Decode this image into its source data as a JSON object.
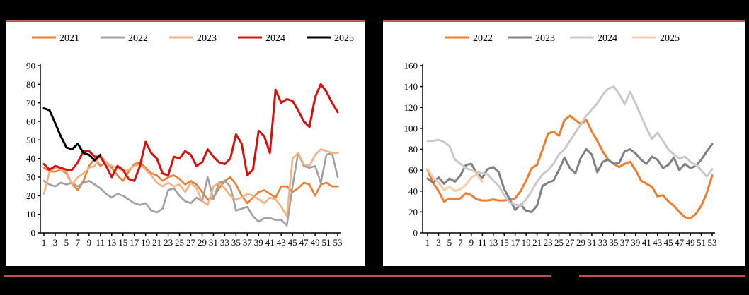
{
  "page": {
    "background": "#000000",
    "card_background": "#FFFFFF",
    "rule_color": "#B85C56",
    "bottom_rule_color": "#C0504D"
  },
  "charts": [
    {
      "id": "left-weekly-chart",
      "chart_data": {
        "type": "line",
        "x": {
          "min": 1,
          "max": 53,
          "tick_step": 2,
          "tick_labels": [
            "1",
            "3",
            "5",
            "7",
            "9",
            "11",
            "13",
            "15",
            "17",
            "19",
            "21",
            "23",
            "25",
            "27",
            "29",
            "31",
            "33",
            "35",
            "37",
            "39",
            "41",
            "43",
            "45",
            "47",
            "49",
            "51",
            "53"
          ]
        },
        "y": {
          "min": 0,
          "max": 90,
          "tick_step": 10,
          "tick_labels": [
            "0",
            "10",
            "20",
            "30",
            "40",
            "50",
            "60",
            "70",
            "80",
            "90"
          ]
        },
        "grid": false,
        "legend_position": "top",
        "series": [
          {
            "name": "2021",
            "color": "#ED7D31",
            "stroke_width": 2.6,
            "start_week": 1,
            "values": [
              35,
              33,
              33,
              34,
              32,
              26,
              23,
              28,
              36,
              40,
              36,
              38,
              35,
              31,
              28,
              33,
              37,
              38,
              35,
              32,
              31,
              28,
              30,
              31,
              29,
              26,
              28,
              26,
              22,
              18,
              19,
              24,
              28,
              30,
              26,
              20,
              16,
              19,
              22,
              23,
              21,
              19,
              25,
              25,
              22,
              24,
              27,
              26,
              20,
              26,
              27,
              25,
              25
            ]
          },
          {
            "name": "2022",
            "color": "#A0A0A0",
            "stroke_width": 2.6,
            "start_week": 1,
            "values": [
              28,
              26,
              25,
              27,
              26,
              27,
              25,
              27,
              28,
              26,
              24,
              21,
              19,
              21,
              20,
              18,
              16,
              15,
              16,
              12,
              11,
              13,
              23,
              24,
              20,
              17,
              16,
              19,
              17,
              30,
              18,
              27,
              28,
              25,
              12,
              13,
              14,
              9,
              6,
              8,
              8,
              7,
              7,
              4,
              25,
              43,
              36,
              35,
              36,
              27,
              42,
              43,
              30
            ]
          },
          {
            "name": "2023",
            "color": "#F4B183",
            "stroke_width": 2.6,
            "start_week": 1,
            "values": [
              21,
              33,
              35,
              34,
              33,
              26,
              30,
              32,
              35,
              36,
              42,
              38,
              36,
              35,
              33,
              34,
              36,
              37,
              34,
              31,
              27,
              25,
              27,
              25,
              26,
              22,
              27,
              24,
              17,
              15,
              25,
              27,
              24,
              20,
              18,
              19,
              21,
              20,
              18,
              16,
              19,
              18,
              14,
              9,
              40,
              43,
              37,
              36,
              42,
              45,
              44,
              43,
              43
            ]
          },
          {
            "name": "2024",
            "color": "#D7100E",
            "stroke_width": 3,
            "start_week": 1,
            "values": [
              37,
              34,
              36,
              35,
              34,
              34,
              38,
              44,
              44,
              41,
              41,
              36,
              30,
              36,
              34,
              29,
              28,
              36,
              49,
              43,
              40,
              32,
              31,
              41,
              40,
              44,
              42,
              36,
              38,
              45,
              41,
              38,
              37,
              40,
              53,
              48,
              31,
              34,
              55,
              52,
              43,
              77,
              70,
              72,
              71,
              66,
              60,
              57,
              73,
              80,
              76,
              70,
              65
            ]
          },
          {
            "name": "2025",
            "color": "#000000",
            "stroke_width": 3,
            "start_week": 1,
            "values": [
              67,
              66,
              59,
              52,
              46,
              45,
              48,
              43,
              42,
              39,
              42
            ]
          }
        ]
      }
    },
    {
      "id": "right-weekly-chart",
      "chart_data": {
        "type": "line",
        "x": {
          "min": 1,
          "max": 53,
          "tick_step": 2,
          "tick_labels": [
            "1",
            "3",
            "5",
            "7",
            "9",
            "11",
            "13",
            "15",
            "17",
            "19",
            "21",
            "23",
            "25",
            "27",
            "29",
            "31",
            "33",
            "35",
            "37",
            "39",
            "41",
            "43",
            "45",
            "47",
            "49",
            "51",
            "53"
          ]
        },
        "y": {
          "min": 0,
          "max": 160,
          "tick_step": 20,
          "tick_labels": [
            "0",
            "20",
            "40",
            "60",
            "80",
            "100",
            "120",
            "140",
            "160"
          ]
        },
        "grid": false,
        "legend_position": "top",
        "series": [
          {
            "name": "2022",
            "color": "#ED7D31",
            "stroke_width": 3,
            "start_week": 1,
            "values": [
              60,
              48,
              40,
              30,
              33,
              32,
              33,
              38,
              36,
              32,
              31,
              31,
              32,
              31,
              31,
              32,
              33,
              40,
              50,
              62,
              65,
              80,
              95,
              97,
              93,
              108,
              112,
              108,
              104,
              108,
              97,
              88,
              78,
              70,
              66,
              63,
              66,
              68,
              60,
              50,
              47,
              44,
              35,
              36,
              30,
              26,
              20,
              15,
              14,
              18,
              26,
              38,
              55
            ]
          },
          {
            "name": "2023",
            "color": "#808080",
            "stroke_width": 3,
            "start_week": 1,
            "values": [
              52,
              48,
              53,
              47,
              52,
              49,
              55,
              65,
              66,
              57,
              53,
              61,
              63,
              58,
              42,
              32,
              22,
              27,
              21,
              20,
              26,
              45,
              48,
              50,
              60,
              72,
              62,
              57,
              72,
              80,
              75,
              58,
              68,
              70,
              66,
              67,
              78,
              80,
              76,
              70,
              66,
              73,
              70,
              62,
              65,
              72,
              60,
              66,
              62,
              64,
              70,
              78,
              85
            ]
          },
          {
            "name": "2024",
            "color": "#C9C9C9",
            "stroke_width": 3,
            "start_week": 1,
            "values": [
              88,
              88,
              89,
              87,
              83,
              70,
              66,
              62,
              60,
              58,
              57,
              56,
              50,
              45,
              36,
              29,
              27,
              26,
              32,
              40,
              49,
              56,
              60,
              66,
              75,
              80,
              88,
              96,
              104,
              112,
              118,
              124,
              132,
              138,
              140,
              133,
              123,
              135,
              124,
              112,
              100,
              90,
              96,
              88,
              80,
              75,
              71,
              73,
              68,
              65,
              60,
              54,
              61
            ]
          },
          {
            "name": "2025",
            "color": "#F8CBAD",
            "stroke_width": 3,
            "start_week": 1,
            "values": [
              61,
              53,
              48,
              41,
              44,
              40,
              42,
              46,
              53,
              56,
              49
            ]
          }
        ]
      }
    }
  ]
}
